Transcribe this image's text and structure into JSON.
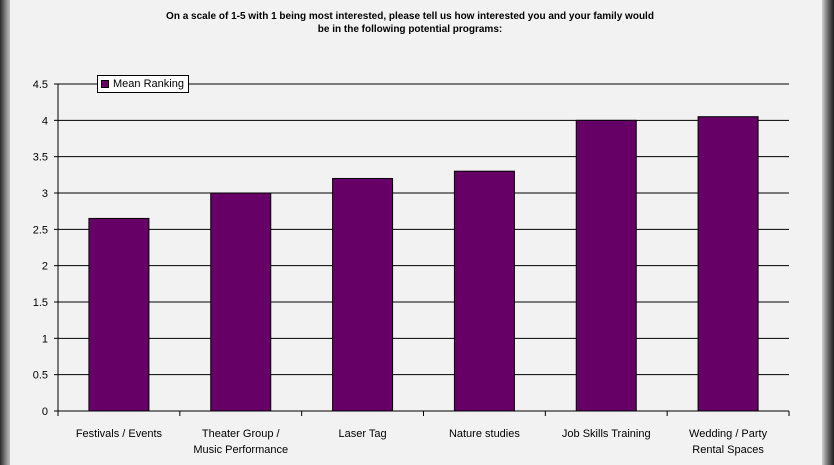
{
  "chart_data": {
    "type": "bar",
    "title": "On a scale of 1-5 with 1 being most interested, please tell us how interested you and your family would be in the following potential programs:",
    "title_lines": [
      "On a scale of 1-5 with 1 being most interested, please tell us how interested you and your family would",
      "be in the following potential programs:"
    ],
    "categories": [
      "Festivals / Events",
      "Theater Group / Music Performance",
      "Laser Tag",
      "Nature studies",
      "Job Skills Training",
      "Wedding / Party Rental Spaces"
    ],
    "category_lines": [
      [
        "Festivals / Events"
      ],
      [
        "Theater Group /",
        "Music Performance"
      ],
      [
        "Laser Tag"
      ],
      [
        "Nature studies"
      ],
      [
        "Job Skills Training"
      ],
      [
        "Wedding / Party",
        "Rental Spaces"
      ]
    ],
    "series": [
      {
        "name": "Mean Ranking",
        "values": [
          2.65,
          3.0,
          3.2,
          3.3,
          4.0,
          4.05
        ]
      }
    ],
    "xlabel": "",
    "ylabel": "",
    "ylim": [
      0,
      4.5
    ],
    "yticks": [
      "0",
      "0.5",
      "1",
      "1.5",
      "2",
      "2.5",
      "3",
      "3.5",
      "4",
      "4.5"
    ],
    "grid": true,
    "legend_position": "top-left",
    "bar_color": "#660066"
  }
}
